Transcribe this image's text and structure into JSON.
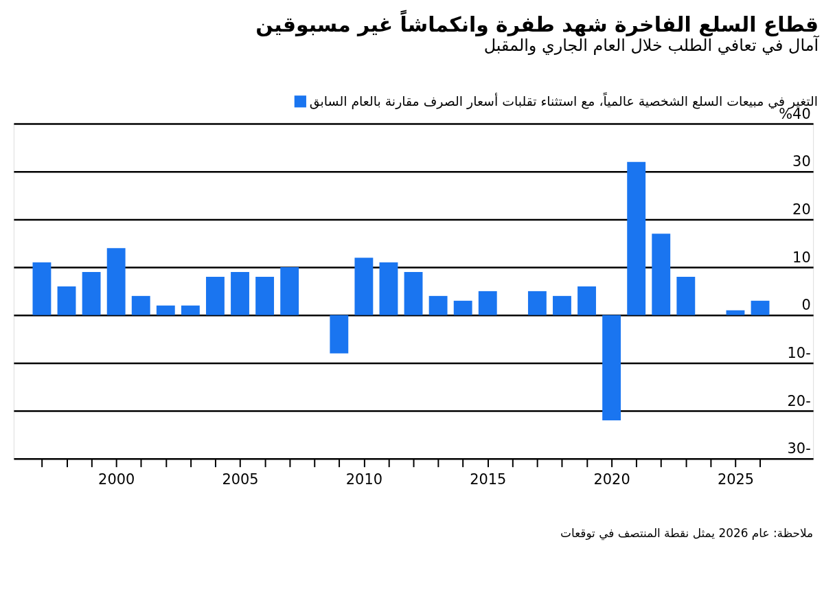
{
  "chart_data": {
    "type": "bar",
    "title": "قطاع السلع الفاخرة شهد طفرة وانكماشاً غير مسبوقين",
    "subtitle": "آمال في تعافي الطلب خلال العام الجاري والمقبل",
    "x": [
      1997,
      1998,
      1999,
      2000,
      2001,
      2002,
      2003,
      2004,
      2005,
      2006,
      2007,
      2008,
      2009,
      2010,
      2011,
      2012,
      2013,
      2014,
      2015,
      2016,
      2017,
      2018,
      2019,
      2020,
      2021,
      2022,
      2023,
      2024,
      2025,
      2026
    ],
    "series": [
      {
        "name": "التغير في مبيعات السلع الشخصية عالمياً، مع استثناء تقلبات أسعار الصرف مقارنة بالعام السابق",
        "color": "#1a75f0",
        "values": [
          11,
          6,
          9,
          14,
          4,
          2,
          2,
          8,
          9,
          8,
          10,
          0,
          -8,
          12,
          11,
          9,
          4,
          3,
          5,
          0,
          5,
          4,
          6,
          -22,
          32,
          17,
          8,
          0,
          1,
          3
        ]
      }
    ],
    "xlim": [
      1996,
      2028
    ],
    "xticks": [
      {
        "value": 1997,
        "label": null
      },
      {
        "value": 1998,
        "label": null
      },
      {
        "value": 1999,
        "label": null
      },
      2000,
      {
        "value": 2001,
        "label": null
      },
      {
        "value": 2002,
        "label": null
      },
      {
        "value": 2003,
        "label": null
      },
      {
        "value": 2004,
        "label": null
      },
      2005,
      {
        "value": 2006,
        "label": null
      },
      {
        "value": 2007,
        "label": null
      },
      {
        "value": 2008,
        "label": null
      },
      {
        "value": 2009,
        "label": null
      },
      2010,
      {
        "value": 2011,
        "label": null
      },
      {
        "value": 2012,
        "label": null
      },
      {
        "value": 2013,
        "label": null
      },
      {
        "value": 2014,
        "label": null
      },
      2015,
      {
        "value": 2016,
        "label": null
      },
      {
        "value": 2017,
        "label": null
      },
      {
        "value": 2018,
        "label": null
      },
      {
        "value": 2019,
        "label": null
      },
      2020,
      {
        "value": 2021,
        "label": null
      },
      {
        "value": 2022,
        "label": null
      },
      {
        "value": 2023,
        "label": null
      },
      {
        "value": 2024,
        "label": null
      },
      2025,
      {
        "value": 2026,
        "label": null
      }
    ],
    "ylim": [
      -30,
      40
    ],
    "yticks": [
      {
        "value": -30,
        "label": "30-"
      },
      {
        "value": -20,
        "label": "20-"
      },
      {
        "value": -10,
        "label": "10-"
      },
      0,
      10,
      20,
      30,
      {
        "value": 40,
        "label": "%40"
      }
    ],
    "grid": "y",
    "legend": "top right",
    "annotations": [
      "ملاحظة: عام 2026 يمثل نقطة المنتصف في توقعات"
    ]
  }
}
